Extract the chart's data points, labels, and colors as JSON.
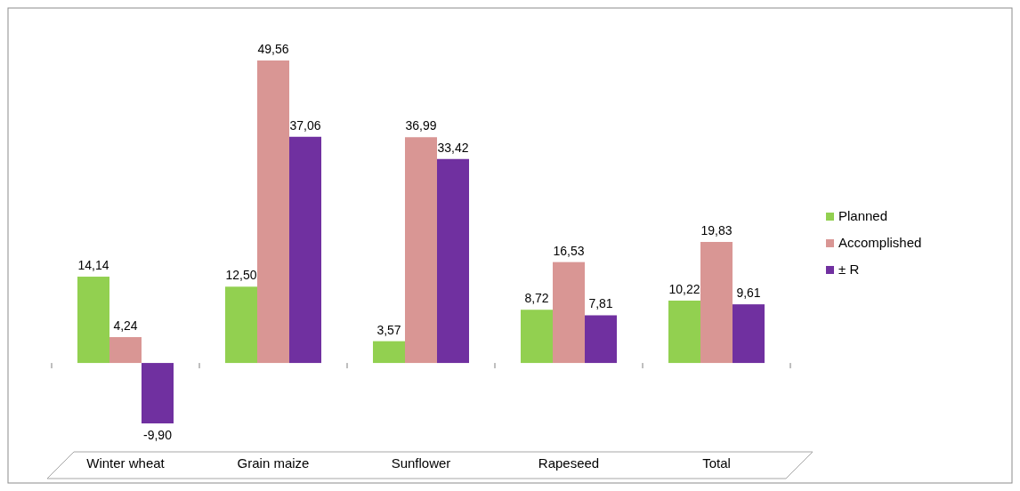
{
  "chart_data": {
    "type": "bar",
    "categories": [
      "Winter wheat",
      "Grain maize",
      "Sunflower",
      "Rapeseed",
      "Total"
    ],
    "series": [
      {
        "name": "Planned",
        "color": "#92d050",
        "values": [
          14.14,
          12.5,
          3.57,
          8.72,
          10.22
        ],
        "value_labels": [
          "14,14",
          "12,50",
          "3,57",
          "8,72",
          "10,22"
        ]
      },
      {
        "name": "Accomplished",
        "color": "#d99694",
        "values": [
          4.24,
          49.56,
          36.99,
          16.53,
          19.83
        ],
        "value_labels": [
          "4,24",
          "49,56",
          "36,99",
          "16,53",
          "19,83"
        ]
      },
      {
        "name": "± R",
        "color": "#7030a0",
        "values": [
          -9.9,
          37.06,
          33.42,
          7.81,
          9.61
        ],
        "value_labels": [
          "-9,90",
          "37,06",
          "33,42",
          "7,81",
          "9,61"
        ]
      }
    ],
    "legend": "right",
    "grid": false
  }
}
